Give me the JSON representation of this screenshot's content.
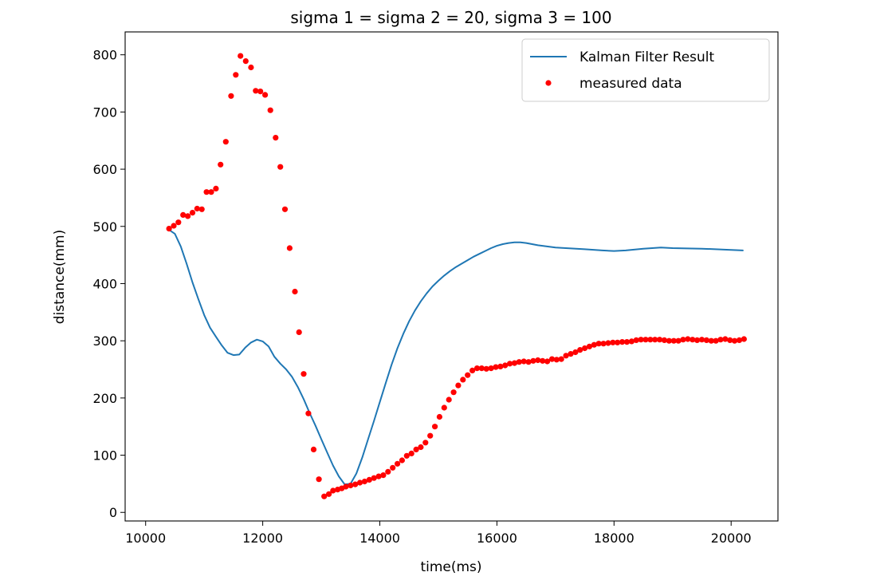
{
  "chart_data": {
    "type": "line",
    "title": "sigma 1 = sigma 2 = 20, sigma 3 = 100",
    "xlabel": "time(ms)",
    "ylabel": "distance(mm)",
    "xlim": [
      9650,
      20800
    ],
    "ylim": [
      -15,
      840
    ],
    "x_ticks": [
      10000,
      12000,
      14000,
      16000,
      18000,
      20000
    ],
    "y_ticks": [
      0,
      100,
      200,
      300,
      400,
      500,
      600,
      700,
      800
    ],
    "grid": false,
    "legend_position": "top-right",
    "series": [
      {
        "name": "Kalman Filter Result",
        "style": "line",
        "color": "#1f77b4",
        "x": [
          10400,
          10500,
          10600,
          10700,
          10800,
          10900,
          11000,
          11100,
          11200,
          11300,
          11400,
          11500,
          11600,
          11700,
          11800,
          11900,
          12000,
          12100,
          12200,
          12300,
          12400,
          12500,
          12600,
          12700,
          12800,
          12900,
          13000,
          13100,
          13200,
          13300,
          13400,
          13500,
          13600,
          13700,
          13800,
          13900,
          14000,
          14100,
          14200,
          14300,
          14400,
          14500,
          14600,
          14700,
          14800,
          14900,
          15000,
          15100,
          15200,
          15300,
          15400,
          15500,
          15600,
          15700,
          15800,
          15900,
          16000,
          16100,
          16200,
          16300,
          16400,
          16500,
          16700,
          17000,
          17500,
          17800,
          18000,
          18200,
          18500,
          18800,
          19000,
          19500,
          20000,
          20200
        ],
        "y": [
          494,
          487,
          465,
          435,
          402,
          373,
          345,
          323,
          307,
          292,
          279,
          275,
          276,
          288,
          297,
          302,
          299,
          290,
          272,
          260,
          250,
          237,
          219,
          198,
          174,
          152,
          128,
          105,
          82,
          63,
          49,
          50,
          68,
          96,
          128,
          160,
          193,
          226,
          258,
          287,
          312,
          334,
          353,
          369,
          383,
          395,
          405,
          414,
          422,
          429,
          435,
          441,
          447,
          452,
          457,
          462,
          466,
          469,
          471,
          472,
          472,
          471,
          467,
          463,
          460,
          458,
          457,
          458,
          461,
          463,
          462,
          461,
          459,
          458
        ]
      },
      {
        "name": "measured data",
        "style": "points",
        "color": "#ff0000",
        "x": [
          10400,
          10480,
          10560,
          10640,
          10720,
          10800,
          10880,
          10960,
          11040,
          11120,
          11200,
          11280,
          11370,
          11460,
          11540,
          11620,
          11710,
          11800,
          11880,
          11960,
          12040,
          12130,
          12220,
          12300,
          12380,
          12460,
          12550,
          12620,
          12700,
          12780,
          12870,
          12960,
          13050,
          13130,
          13200,
          13280,
          13350,
          13420,
          13500,
          13580,
          13660,
          13740,
          13820,
          13900,
          13980,
          14060,
          14140,
          14220,
          14300,
          14380,
          14460,
          14540,
          14620,
          14700,
          14780,
          14860,
          14940,
          15020,
          15100,
          15180,
          15260,
          15340,
          15420,
          15500,
          15580,
          15660,
          15740,
          15820,
          15900,
          15980,
          16060,
          16140,
          16220,
          16300,
          16380,
          16460,
          16540,
          16620,
          16700,
          16780,
          16860,
          16940,
          17020,
          17100,
          17180,
          17260,
          17340,
          17420,
          17500,
          17580,
          17660,
          17740,
          17820,
          17900,
          17980,
          18060,
          18140,
          18220,
          18300,
          18380,
          18460,
          18540,
          18620,
          18700,
          18780,
          18860,
          18940,
          19020,
          19100,
          19180,
          19260,
          19340,
          19420,
          19500,
          19580,
          19660,
          19740,
          19820,
          19900,
          19980,
          20060,
          20140,
          20220
        ],
        "y": [
          496,
          501,
          507,
          520,
          518,
          524,
          531,
          530,
          560,
          560,
          566,
          608,
          648,
          728,
          765,
          798,
          789,
          778,
          737,
          736,
          730,
          703,
          655,
          604,
          530,
          462,
          386,
          315,
          242,
          173,
          110,
          58,
          28,
          32,
          38,
          40,
          42,
          45,
          47,
          49,
          52,
          54,
          57,
          60,
          63,
          65,
          71,
          78,
          85,
          91,
          99,
          103,
          110,
          114,
          122,
          134,
          150,
          167,
          183,
          197,
          210,
          222,
          232,
          240,
          248,
          252,
          252,
          251,
          252,
          254,
          255,
          257,
          260,
          261,
          263,
          264,
          263,
          265,
          266,
          265,
          264,
          268,
          267,
          268,
          274,
          277,
          280,
          284,
          287,
          290,
          293,
          295,
          295,
          296,
          297,
          297,
          298,
          298,
          299,
          301,
          302,
          302,
          302,
          302,
          302,
          301,
          300,
          300,
          300,
          302,
          303,
          302,
          301,
          302,
          301,
          300,
          300,
          302,
          303,
          301,
          300,
          301,
          303
        ]
      }
    ]
  }
}
